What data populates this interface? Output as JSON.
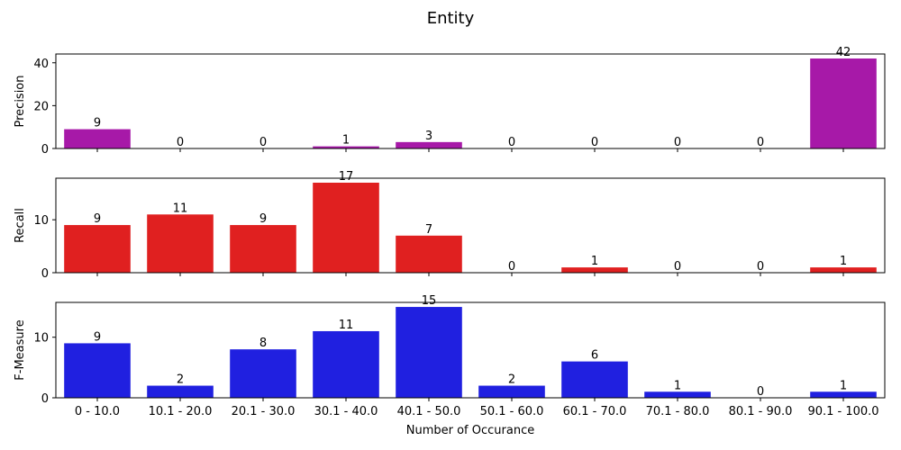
{
  "chart_data": {
    "type": "bar",
    "title": "Entity",
    "xlabel": "Number of Occurance",
    "categories": [
      "0 - 10.0",
      "10.1 - 20.0",
      "20.1 - 30.0",
      "30.1 - 40.0",
      "40.1 - 50.0",
      "50.1 - 60.0",
      "60.1 - 70.0",
      "70.1 - 80.0",
      "80.1 - 90.0",
      "90.1 - 100.0"
    ],
    "panels": [
      {
        "ylabel": "Precision",
        "color": "#a719a8",
        "values": [
          9,
          0,
          0,
          1,
          3,
          0,
          0,
          0,
          0,
          42
        ],
        "ylim": [
          0,
          44.1
        ],
        "yticks": [
          0,
          20,
          40
        ]
      },
      {
        "ylabel": "Recall",
        "color": "#e02020",
        "values": [
          9,
          11,
          9,
          17,
          7,
          0,
          1,
          0,
          0,
          1
        ],
        "ylim": [
          0,
          17.85
        ],
        "yticks": [
          0,
          10
        ]
      },
      {
        "ylabel": "F-Measure",
        "color": "#2020e0",
        "values": [
          9,
          2,
          8,
          11,
          15,
          2,
          6,
          1,
          0,
          1
        ],
        "ylim": [
          0,
          15.75
        ],
        "yticks": [
          0,
          10
        ]
      }
    ],
    "grid": false,
    "legend": "none"
  }
}
